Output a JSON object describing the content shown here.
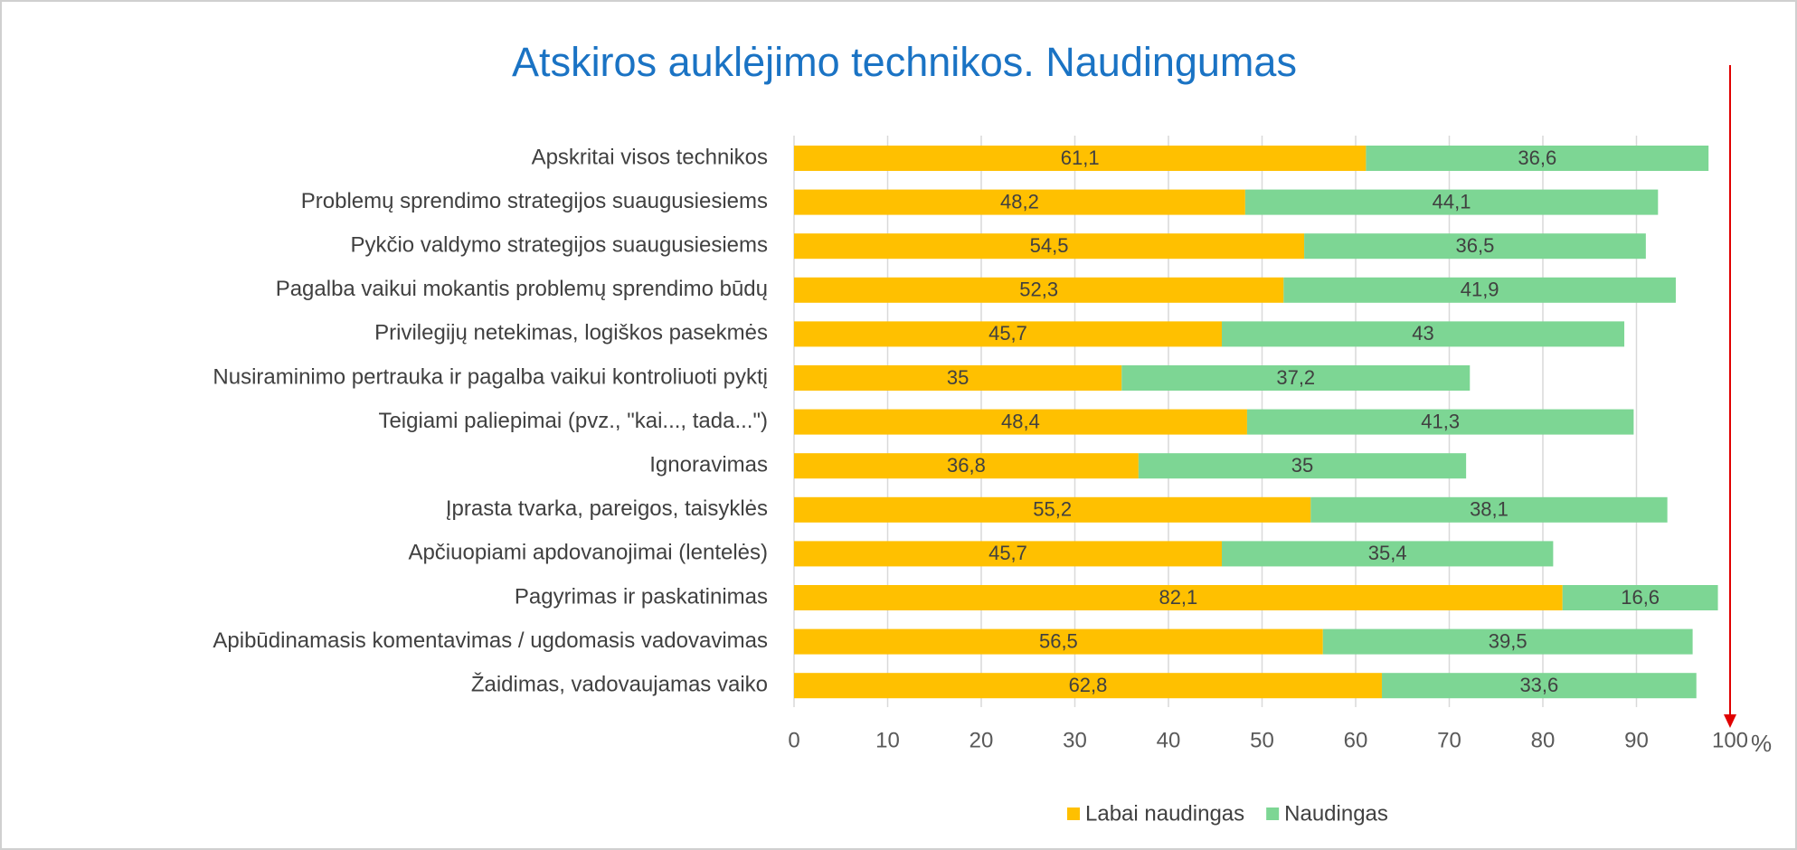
{
  "chart_data": {
    "type": "stacked_barh",
    "title": "Atskiros auklėjimo technikos. Naudingumas",
    "categories": [
      "Apskritai visos technikos",
      "Problemų sprendimo strategijos suaugusiesiems",
      "Pykčio valdymo strategijos suaugusiesiems",
      "Pagalba vaikui mokantis problemų sprendimo būdų",
      "Privilegijų netekimas, logiškos pasekmės",
      "Nusiraminimo pertrauka ir pagalba vaikui kontroliuoti pyktį",
      "Teigiami paliepimai (pvz., \"kai..., tada...\")",
      "Ignoravimas",
      "Įprasta tvarka, pareigos, taisyklės",
      "Apčiuopiami apdovanojimai (lentelės)",
      "Pagyrimas ir paskatinimas",
      "Apibūdinamasis komentavimas / ugdomasis vadovavimas",
      "Žaidimas, vadovaujamas vaiko"
    ],
    "series": [
      {
        "name": "Labai naudingas",
        "color": "#ffc000",
        "values": [
          61.1,
          48.2,
          54.5,
          52.3,
          45.7,
          35,
          48.4,
          36.8,
          55.2,
          45.7,
          82.1,
          56.5,
          62.8
        ],
        "value_labels": [
          "61,1",
          "48,2",
          "54,5",
          "52,3",
          "45,7",
          "35",
          "48,4",
          "36,8",
          "55,2",
          "45,7",
          "82,1",
          "56,5",
          "62,8"
        ]
      },
      {
        "name": "Naudingas",
        "color": "#7dd694",
        "values": [
          36.6,
          44.1,
          36.5,
          41.9,
          43,
          37.2,
          41.3,
          35,
          38.1,
          35.4,
          16.6,
          39.5,
          33.6
        ],
        "value_labels": [
          "36,6",
          "44,1",
          "36,5",
          "41,9",
          "43",
          "37,2",
          "41,3",
          "35",
          "38,1",
          "35,4",
          "16,6",
          "39,5",
          "33,6"
        ]
      }
    ],
    "xlim": [
      0,
      100
    ],
    "xticks": [
      0,
      10,
      20,
      30,
      40,
      50,
      60,
      70,
      80,
      90,
      100
    ],
    "x_unit": "%",
    "grid": true,
    "legend": "bottom"
  }
}
